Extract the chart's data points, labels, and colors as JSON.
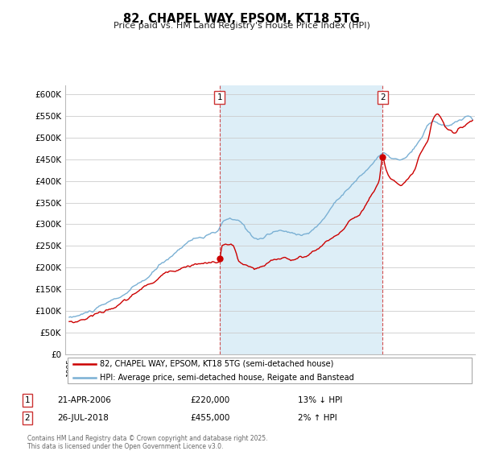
{
  "title": "82, CHAPEL WAY, EPSOM, KT18 5TG",
  "subtitle": "Price paid vs. HM Land Registry's House Price Index (HPI)",
  "ylim": [
    0,
    620000
  ],
  "yticks": [
    0,
    50000,
    100000,
    150000,
    200000,
    250000,
    300000,
    350000,
    400000,
    450000,
    500000,
    550000,
    600000
  ],
  "ytick_labels": [
    "£0",
    "£50K",
    "£100K",
    "£150K",
    "£200K",
    "£250K",
    "£300K",
    "£350K",
    "£400K",
    "£450K",
    "£500K",
    "£550K",
    "£600K"
  ],
  "legend_line1": "82, CHAPEL WAY, EPSOM, KT18 5TG (semi-detached house)",
  "legend_line2": "HPI: Average price, semi-detached house, Reigate and Banstead",
  "footer": "Contains HM Land Registry data © Crown copyright and database right 2025.\nThis data is licensed under the Open Government Licence v3.0.",
  "line_color_red": "#cc0000",
  "line_color_blue": "#7ab0d4",
  "fill_color_blue": "#ddeef7",
  "grid_color": "#cccccc",
  "bg_color": "#ffffff",
  "sale1_x": 2006.3,
  "sale1_y": 220000,
  "sale2_x": 2018.58,
  "sale2_y": 455000,
  "xlim_left": 1994.7,
  "xlim_right": 2025.5
}
